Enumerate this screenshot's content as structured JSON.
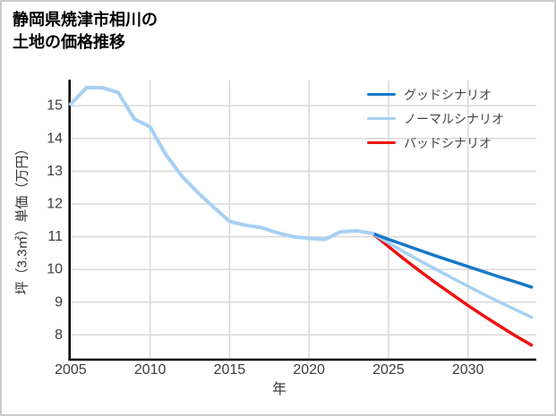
{
  "title": {
    "line1": "静岡県焼津市相川の",
    "line2": "土地の価格推移"
  },
  "chart_data": {
    "type": "line",
    "title": "静岡県焼津市相川の土地の価格推移",
    "xlabel": "年",
    "ylabel": "坪（3.3㎡）単価（万円）",
    "xlim": [
      2004.95,
      2034.3
    ],
    "ylim": [
      7.26,
      15.77
    ],
    "x_ticks": [
      2005,
      2010,
      2015,
      2020,
      2025,
      2030
    ],
    "y_ticks": [
      8,
      9,
      10,
      11,
      12,
      13,
      14,
      15
    ],
    "grid": true,
    "legend_position": "top-right",
    "colors": {
      "grid": "#d9d9d9",
      "axis": "#000000",
      "tick_text": "#3b3b3b",
      "background": "#ffffff"
    },
    "series": [
      {
        "id": "history",
        "name": "",
        "color": "#a7d0f2",
        "width": 4,
        "x": [
          2005,
          2006,
          2007,
          2008,
          2009,
          2010,
          2011,
          2012,
          2013,
          2014,
          2015,
          2016,
          2017,
          2018,
          2019,
          2020,
          2021,
          2022,
          2023,
          2024
        ],
        "y": [
          15.05,
          15.55,
          15.55,
          15.4,
          14.6,
          14.35,
          13.5,
          12.85,
          12.35,
          11.9,
          11.47,
          11.35,
          11.28,
          11.12,
          11.0,
          10.95,
          10.92,
          11.15,
          11.18,
          11.1
        ]
      },
      {
        "id": "good",
        "name": "グッドシナリオ",
        "color": "#1777c8",
        "width": 3.5,
        "x": [
          2024,
          2025,
          2026,
          2027,
          2028,
          2029,
          2030,
          2031,
          2032,
          2033,
          2034
        ],
        "y": [
          11.1,
          10.92,
          10.75,
          10.58,
          10.41,
          10.25,
          10.09,
          9.93,
          9.77,
          9.62,
          9.46
        ]
      },
      {
        "id": "normal",
        "name": "ノーマルシナリオ",
        "color": "#a7d0f2",
        "width": 3.5,
        "x": [
          2024,
          2025,
          2026,
          2027,
          2028,
          2029,
          2030,
          2031,
          2032,
          2033,
          2034
        ],
        "y": [
          11.1,
          10.81,
          10.53,
          10.26,
          10.0,
          9.74,
          9.49,
          9.24,
          9.0,
          8.77,
          8.54
        ]
      },
      {
        "id": "bad",
        "name": "バッドシナリオ",
        "color": "#ee1111",
        "width": 3.5,
        "x": [
          2024,
          2025,
          2026,
          2027,
          2028,
          2029,
          2030,
          2031,
          2032,
          2033,
          2034
        ],
        "y": [
          11.1,
          10.7,
          10.31,
          9.94,
          9.58,
          9.24,
          8.9,
          8.58,
          8.27,
          7.97,
          7.69
        ]
      }
    ]
  }
}
